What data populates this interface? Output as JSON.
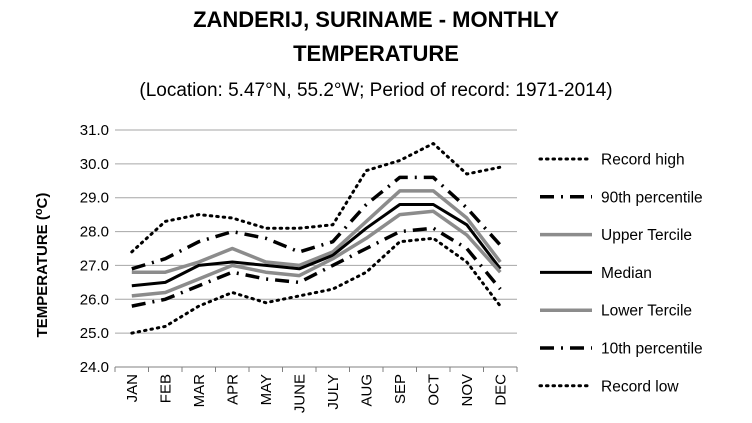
{
  "chart_data": {
    "type": "line",
    "title_line1": "ZANDERIJ, SURINAME - MONTHLY",
    "title_line2": "TEMPERATURE",
    "subtitle": "(Location: 5.47°N, 55.2°W; Period of record: 1971-2014)",
    "ylabel_main": "TEMPERATURE (",
    "ylabel_sup": "o",
    "ylabel_end": "C)",
    "xlabel": "",
    "ylim": [
      24.0,
      31.0
    ],
    "yticks": [
      "24.0",
      "25.0",
      "26.0",
      "27.0",
      "28.0",
      "29.0",
      "30.0",
      "31.0"
    ],
    "grid": true,
    "legend_position": "right",
    "categories": [
      "JAN",
      "FEB",
      "MAR",
      "APR",
      "MAY",
      "JUNE",
      "JULY",
      "AUG",
      "SEP",
      "OCT",
      "NOV",
      "DEC"
    ],
    "series": [
      {
        "name": "Record high",
        "style": "dotted-black",
        "color": "#000000",
        "values": [
          27.4,
          28.3,
          28.5,
          28.4,
          28.1,
          28.1,
          28.2,
          29.8,
          30.1,
          30.6,
          29.7,
          29.9
        ]
      },
      {
        "name": "90th percentile",
        "style": "dashdot-black",
        "color": "#000000",
        "values": [
          26.9,
          27.2,
          27.7,
          28.0,
          27.8,
          27.4,
          27.7,
          28.8,
          29.6,
          29.6,
          28.7,
          27.6
        ]
      },
      {
        "name": "Upper Tercile",
        "style": "solid-gray",
        "color": "#8c8c8c",
        "values": [
          26.8,
          26.8,
          27.1,
          27.5,
          27.1,
          27.0,
          27.4,
          28.3,
          29.2,
          29.2,
          28.4,
          27.1
        ]
      },
      {
        "name": "Median",
        "style": "solid-black",
        "color": "#000000",
        "values": [
          26.4,
          26.5,
          27.0,
          27.1,
          27.0,
          26.9,
          27.3,
          28.1,
          28.8,
          28.8,
          28.2,
          26.9
        ]
      },
      {
        "name": "Lower Tercile",
        "style": "solid-gray",
        "color": "#8c8c8c",
        "values": [
          26.1,
          26.2,
          26.6,
          27.0,
          26.8,
          26.7,
          27.2,
          27.8,
          28.5,
          28.6,
          27.9,
          26.8
        ]
      },
      {
        "name": "10th percentile",
        "style": "dashdot-black",
        "color": "#000000",
        "values": [
          25.8,
          26.0,
          26.4,
          26.8,
          26.6,
          26.5,
          27.0,
          27.5,
          28.0,
          28.1,
          27.5,
          26.3
        ]
      },
      {
        "name": "Record low",
        "style": "dotted-black",
        "color": "#000000",
        "values": [
          25.0,
          25.2,
          25.8,
          26.2,
          25.9,
          26.1,
          26.3,
          26.8,
          27.7,
          27.8,
          27.1,
          25.8
        ]
      }
    ]
  }
}
